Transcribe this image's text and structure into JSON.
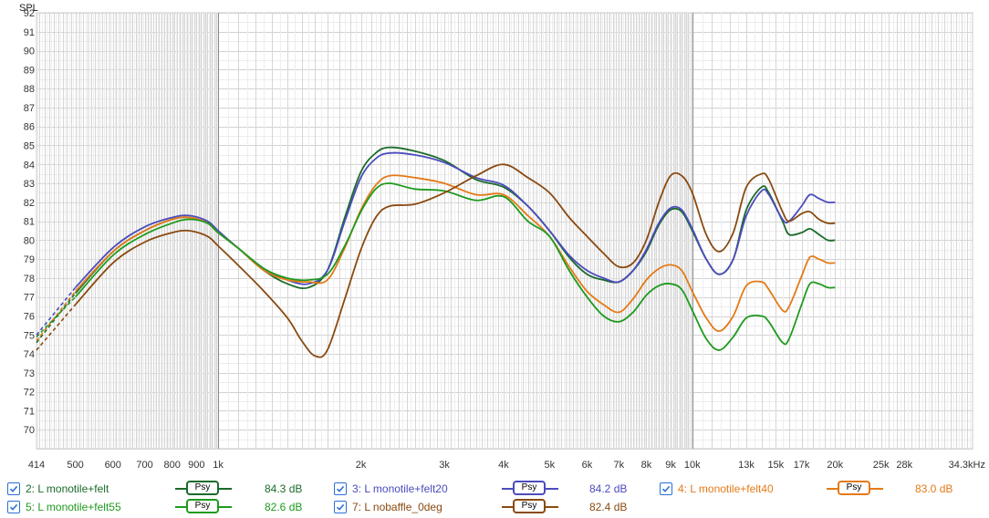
{
  "chart_data": {
    "type": "line",
    "title": "",
    "ylabel": "SPL",
    "xlabel": "Hz",
    "x_scale": "log",
    "xlim": [
      414,
      39000
    ],
    "ylim": [
      69,
      92
    ],
    "grid": true,
    "y_ticks": [
      70,
      71,
      72,
      73,
      74,
      75,
      76,
      77,
      78,
      79,
      80,
      81,
      82,
      83,
      84,
      85,
      86,
      87,
      88,
      89,
      90,
      91,
      92
    ],
    "x_tick_labels": [
      {
        "f": 414,
        "label": "414"
      },
      {
        "f": 500,
        "label": "500"
      },
      {
        "f": 600,
        "label": "600"
      },
      {
        "f": 700,
        "label": "700"
      },
      {
        "f": 800,
        "label": "800"
      },
      {
        "f": 900,
        "label": "900"
      },
      {
        "f": 1000,
        "label": "1k"
      },
      {
        "f": 2000,
        "label": "2k"
      },
      {
        "f": 3000,
        "label": "3k"
      },
      {
        "f": 4000,
        "label": "4k"
      },
      {
        "f": 5000,
        "label": "5k"
      },
      {
        "f": 6000,
        "label": "6k"
      },
      {
        "f": 7000,
        "label": "7k"
      },
      {
        "f": 8000,
        "label": "8k"
      },
      {
        "f": 9000,
        "label": "9k"
      },
      {
        "f": 10000,
        "label": "10k"
      },
      {
        "f": 13000,
        "label": "13k"
      },
      {
        "f": 15000,
        "label": "15k"
      },
      {
        "f": 17000,
        "label": "17k"
      },
      {
        "f": 20000,
        "label": "20k"
      },
      {
        "f": 25000,
        "label": "25k"
      },
      {
        "f": 28000,
        "label": "28k"
      },
      {
        "f": 34300,
        "label": "34.3kHz"
      }
    ],
    "series": [
      {
        "name": "2: L monotile+felt",
        "color": "#1a6b2a",
        "dashed": [
          [
            414,
            74.6
          ],
          [
            500,
            77.2
          ]
        ],
        "points": [
          [
            500,
            77.2
          ],
          [
            600,
            79.4
          ],
          [
            700,
            80.5
          ],
          [
            800,
            81.1
          ],
          [
            870,
            81.2
          ],
          [
            950,
            80.9
          ],
          [
            1000,
            80.4
          ],
          [
            1100,
            79.6
          ],
          [
            1250,
            78.4
          ],
          [
            1400,
            77.7
          ],
          [
            1550,
            77.5
          ],
          [
            1700,
            78.4
          ],
          [
            1850,
            81.2
          ],
          [
            2000,
            83.6
          ],
          [
            2150,
            84.6
          ],
          [
            2300,
            84.9
          ],
          [
            2600,
            84.7
          ],
          [
            3000,
            84.2
          ],
          [
            3500,
            83.2
          ],
          [
            4000,
            82.8
          ],
          [
            4500,
            81.8
          ],
          [
            5000,
            80.5
          ],
          [
            5500,
            79.1
          ],
          [
            6000,
            78.2
          ],
          [
            6500,
            77.9
          ],
          [
            7000,
            77.8
          ],
          [
            7500,
            78.4
          ],
          [
            8000,
            79.4
          ],
          [
            8500,
            80.8
          ],
          [
            9000,
            81.6
          ],
          [
            9500,
            81.5
          ],
          [
            10000,
            80.5
          ],
          [
            10700,
            79.0
          ],
          [
            11400,
            78.2
          ],
          [
            12200,
            79.0
          ],
          [
            13000,
            81.6
          ],
          [
            14000,
            82.8
          ],
          [
            14500,
            82.5
          ],
          [
            15500,
            81.0
          ],
          [
            16000,
            80.3
          ],
          [
            17000,
            80.4
          ],
          [
            17700,
            80.6
          ],
          [
            18500,
            80.3
          ],
          [
            19300,
            80.0
          ],
          [
            20000,
            80.0
          ]
        ]
      },
      {
        "name": "3: L monotile+felt20",
        "color": "#4b4bbd",
        "dashed": [
          [
            414,
            75.0
          ],
          [
            500,
            77.5
          ]
        ],
        "points": [
          [
            500,
            77.5
          ],
          [
            600,
            79.6
          ],
          [
            700,
            80.7
          ],
          [
            800,
            81.2
          ],
          [
            870,
            81.3
          ],
          [
            950,
            81.0
          ],
          [
            1000,
            80.5
          ],
          [
            1100,
            79.6
          ],
          [
            1250,
            78.5
          ],
          [
            1400,
            77.9
          ],
          [
            1550,
            77.7
          ],
          [
            1700,
            78.4
          ],
          [
            1850,
            81.0
          ],
          [
            2000,
            83.3
          ],
          [
            2150,
            84.3
          ],
          [
            2300,
            84.6
          ],
          [
            2600,
            84.5
          ],
          [
            3000,
            84.1
          ],
          [
            3500,
            83.3
          ],
          [
            4000,
            82.9
          ],
          [
            4500,
            81.8
          ],
          [
            5000,
            80.5
          ],
          [
            5500,
            79.2
          ],
          [
            6000,
            78.4
          ],
          [
            6500,
            78.0
          ],
          [
            7000,
            77.8
          ],
          [
            7500,
            78.4
          ],
          [
            8000,
            79.5
          ],
          [
            8500,
            80.9
          ],
          [
            9000,
            81.7
          ],
          [
            9500,
            81.6
          ],
          [
            10000,
            80.6
          ],
          [
            10700,
            79.0
          ],
          [
            11400,
            78.2
          ],
          [
            12200,
            79.0
          ],
          [
            13000,
            81.3
          ],
          [
            14000,
            82.6
          ],
          [
            14500,
            82.4
          ],
          [
            15500,
            81.1
          ],
          [
            16000,
            81.0
          ],
          [
            17000,
            81.8
          ],
          [
            17700,
            82.4
          ],
          [
            18500,
            82.2
          ],
          [
            19300,
            82.0
          ],
          [
            20000,
            82.0
          ]
        ]
      },
      {
        "name": "4: L monotile+felt40",
        "color": "#e47a17",
        "dashed": [
          [
            414,
            74.7
          ],
          [
            500,
            77.3
          ]
        ],
        "points": [
          [
            500,
            77.3
          ],
          [
            600,
            79.4
          ],
          [
            700,
            80.5
          ],
          [
            800,
            81.1
          ],
          [
            870,
            81.2
          ],
          [
            950,
            80.9
          ],
          [
            1000,
            80.4
          ],
          [
            1100,
            79.6
          ],
          [
            1250,
            78.4
          ],
          [
            1400,
            77.9
          ],
          [
            1550,
            77.8
          ],
          [
            1700,
            77.9
          ],
          [
            1850,
            79.6
          ],
          [
            2000,
            81.6
          ],
          [
            2150,
            82.9
          ],
          [
            2300,
            83.4
          ],
          [
            2600,
            83.3
          ],
          [
            3000,
            83.0
          ],
          [
            3500,
            82.4
          ],
          [
            4000,
            82.4
          ],
          [
            4500,
            81.3
          ],
          [
            5000,
            80.2
          ],
          [
            5500,
            78.6
          ],
          [
            6000,
            77.3
          ],
          [
            6500,
            76.6
          ],
          [
            7000,
            76.2
          ],
          [
            7500,
            76.9
          ],
          [
            8000,
            77.9
          ],
          [
            8500,
            78.5
          ],
          [
            9000,
            78.7
          ],
          [
            9500,
            78.4
          ],
          [
            10000,
            77.3
          ],
          [
            10700,
            75.9
          ],
          [
            11400,
            75.2
          ],
          [
            12200,
            76.0
          ],
          [
            13000,
            77.6
          ],
          [
            14000,
            77.8
          ],
          [
            14500,
            77.4
          ],
          [
            15500,
            76.3
          ],
          [
            16000,
            76.5
          ],
          [
            17000,
            78.1
          ],
          [
            17700,
            79.1
          ],
          [
            18500,
            79.0
          ],
          [
            19300,
            78.8
          ],
          [
            20000,
            78.8
          ]
        ]
      },
      {
        "name": "5: L monotile+felt55",
        "color": "#1e9a1e",
        "dashed": [
          [
            414,
            74.9
          ],
          [
            500,
            77.0
          ]
        ],
        "points": [
          [
            500,
            77.0
          ],
          [
            600,
            79.2
          ],
          [
            700,
            80.3
          ],
          [
            800,
            80.9
          ],
          [
            870,
            81.1
          ],
          [
            950,
            80.9
          ],
          [
            1000,
            80.4
          ],
          [
            1100,
            79.6
          ],
          [
            1250,
            78.5
          ],
          [
            1400,
            78.0
          ],
          [
            1550,
            77.9
          ],
          [
            1700,
            78.2
          ],
          [
            1850,
            79.7
          ],
          [
            2000,
            81.5
          ],
          [
            2150,
            82.7
          ],
          [
            2300,
            83.0
          ],
          [
            2600,
            82.7
          ],
          [
            3000,
            82.6
          ],
          [
            3500,
            82.1
          ],
          [
            4000,
            82.3
          ],
          [
            4500,
            81.0
          ],
          [
            5000,
            80.2
          ],
          [
            5500,
            78.4
          ],
          [
            6000,
            77.0
          ],
          [
            6500,
            76.0
          ],
          [
            7000,
            75.7
          ],
          [
            7500,
            76.2
          ],
          [
            8000,
            77.1
          ],
          [
            8500,
            77.6
          ],
          [
            9000,
            77.7
          ],
          [
            9500,
            77.4
          ],
          [
            10000,
            76.3
          ],
          [
            10700,
            74.8
          ],
          [
            11400,
            74.2
          ],
          [
            12200,
            74.9
          ],
          [
            13000,
            75.9
          ],
          [
            14000,
            76.0
          ],
          [
            14500,
            75.7
          ],
          [
            15500,
            74.6
          ],
          [
            16000,
            74.8
          ],
          [
            17000,
            76.6
          ],
          [
            17700,
            77.7
          ],
          [
            18500,
            77.7
          ],
          [
            19300,
            77.5
          ],
          [
            20000,
            77.5
          ]
        ]
      },
      {
        "name": "7: L nobaffle_0deg",
        "color": "#8a4a10",
        "dashed": [
          [
            414,
            74.2
          ],
          [
            500,
            76.6
          ]
        ],
        "points": [
          [
            500,
            76.6
          ],
          [
            600,
            78.8
          ],
          [
            700,
            79.9
          ],
          [
            800,
            80.4
          ],
          [
            870,
            80.5
          ],
          [
            950,
            80.2
          ],
          [
            1000,
            79.7
          ],
          [
            1100,
            78.7
          ],
          [
            1250,
            77.3
          ],
          [
            1400,
            75.9
          ],
          [
            1500,
            74.7
          ],
          [
            1600,
            73.9
          ],
          [
            1700,
            74.2
          ],
          [
            1850,
            76.9
          ],
          [
            2000,
            79.5
          ],
          [
            2150,
            81.2
          ],
          [
            2300,
            81.8
          ],
          [
            2600,
            81.9
          ],
          [
            3000,
            82.5
          ],
          [
            3500,
            83.4
          ],
          [
            4000,
            84.0
          ],
          [
            4500,
            83.3
          ],
          [
            5000,
            82.5
          ],
          [
            5500,
            81.2
          ],
          [
            6000,
            80.2
          ],
          [
            6500,
            79.3
          ],
          [
            7000,
            78.6
          ],
          [
            7500,
            78.8
          ],
          [
            8000,
            80.0
          ],
          [
            8500,
            82.0
          ],
          [
            9000,
            83.4
          ],
          [
            9500,
            83.4
          ],
          [
            10000,
            82.5
          ],
          [
            10700,
            80.3
          ],
          [
            11400,
            79.4
          ],
          [
            12200,
            80.4
          ],
          [
            13000,
            82.8
          ],
          [
            14000,
            83.5
          ],
          [
            14500,
            83.2
          ],
          [
            15500,
            81.5
          ],
          [
            16000,
            81.0
          ],
          [
            17000,
            81.4
          ],
          [
            17700,
            81.5
          ],
          [
            18500,
            81.1
          ],
          [
            19300,
            80.9
          ],
          [
            20000,
            80.9
          ]
        ]
      }
    ]
  },
  "legend": [
    {
      "name": "2: L monotile+felt",
      "color": "#1a6b2a",
      "value": "84.3 dB",
      "psy": "Psy",
      "checked": true
    },
    {
      "name": "3: L monotile+felt20",
      "color": "#4b4bbd",
      "value": "84.2 dB",
      "psy": "Psy",
      "checked": true
    },
    {
      "name": "4: L monotile+felt40",
      "color": "#e47a17",
      "value": "83.0 dB",
      "psy": "Psy",
      "checked": true
    },
    {
      "name": "5: L monotile+felt55",
      "color": "#1e9a1e",
      "value": "82.6 dB",
      "psy": "Psy",
      "checked": true
    },
    {
      "name": "7: L nobaffle_0deg",
      "color": "#8a4a10",
      "value": "82.4 dB",
      "psy": "Psy",
      "checked": true
    }
  ]
}
